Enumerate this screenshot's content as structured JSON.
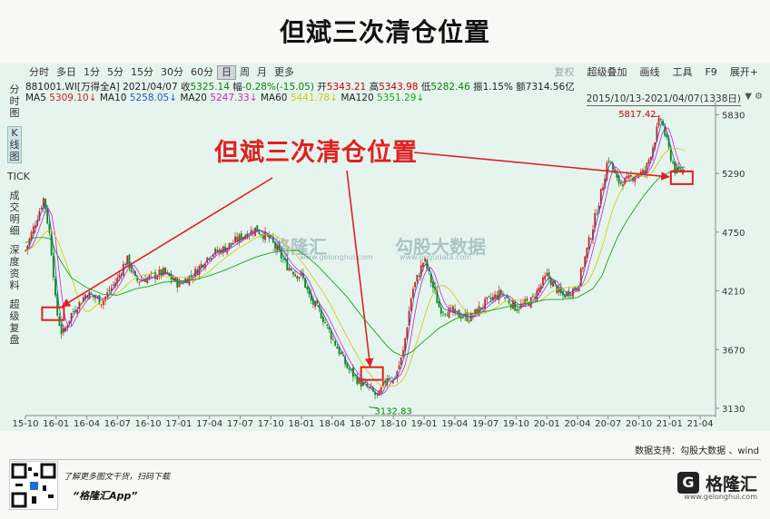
{
  "title": "但斌三次清仓位置",
  "toolbar": {
    "periods": [
      "分时",
      "多日",
      "1分",
      "5分",
      "15分",
      "30分",
      "60分",
      "日",
      "周",
      "月",
      "更多"
    ],
    "active": "日",
    "right": [
      "复权",
      "超级叠加",
      "画线",
      "工具",
      "F9",
      "展开+"
    ]
  },
  "sidebar": [
    "分时图",
    "K线图",
    "TICK",
    "成交明细",
    "深度资料",
    "超级复盘"
  ],
  "info": {
    "code": "881001.WI[万得全A]",
    "date": "2021/04/07",
    "close_label": "收",
    "close": "5325.14",
    "chg_label": "幅",
    "chg": "-0.28%(-15.05)",
    "open_label": "开",
    "open": "5343.21",
    "high_label": "高",
    "high": "5343.98",
    "low_label": "低",
    "low": "5282.46",
    "amp_label": "振",
    "amp": "1.15%",
    "amt_label": "额",
    "amt": "7314.56亿"
  },
  "ma": [
    {
      "name": "MA5",
      "value": "5309.10",
      "color": "#cc2222"
    },
    {
      "name": "MA10",
      "value": "5258.05",
      "color": "#2255cc"
    },
    {
      "name": "MA20",
      "value": "5247.33",
      "color": "#cc22cc"
    },
    {
      "name": "MA60",
      "value": "5441.78",
      "color": "#cccc00"
    },
    {
      "name": "MA120",
      "value": "5351.29",
      "color": "#11aa11"
    }
  ],
  "range_text": "2015/10/13-2021/04/07(1338日)",
  "annotation": "但斌三次清仓位置",
  "watermark": {
    "brand": "格隆汇",
    "brand2": "勾股大数据",
    "url": "www.gelonghui.com",
    "url2": "www.gogudata.com"
  },
  "footer": {
    "source": "数据支持：勾股大数据 、wind",
    "scan": "了解更多图文干货，扫码下载",
    "app": "“格隆汇App”",
    "brand": "格隆汇",
    "brand_sub": "www.gelonghui.com"
  },
  "chart_data": {
    "type": "line",
    "x_ticks": [
      "15-10",
      "16-01",
      "16-04",
      "16-07",
      "16-10",
      "17-01",
      "17-04",
      "17-07",
      "17-10",
      "18-01",
      "18-04",
      "18-07",
      "18-10",
      "19-01",
      "19-04",
      "19-07",
      "19-10",
      "20-01",
      "20-04",
      "20-07",
      "20-10",
      "21-01",
      "21-04"
    ],
    "y_ticks": [
      3130,
      3670,
      4210,
      4750,
      5290,
      5830
    ],
    "ylim": [
      3080,
      5900
    ],
    "x": [
      0,
      0.3,
      0.6,
      0.8,
      0.9,
      1.0,
      1.2,
      1.5,
      2,
      2.5,
      3,
      3.3,
      3.6,
      4,
      4.5,
      5,
      5.5,
      6,
      6.5,
      7,
      7.5,
      8,
      8.5,
      8.9,
      9,
      9.3,
      9.6,
      10,
      10.5,
      10.9,
      11.2,
      11.5,
      11.8,
      12,
      12.3,
      12.6,
      13,
      13.5,
      14,
      14.5,
      15,
      15.5,
      16,
      16.5,
      17,
      17.5,
      18,
      18.5,
      18.8,
      19,
      19.3,
      19.6,
      19.9,
      20.2,
      20.5,
      20.7,
      21,
      21.2,
      21.5
    ],
    "close": [
      4580,
      4820,
      5070,
      4700,
      4420,
      4040,
      3800,
      4000,
      4190,
      4110,
      4320,
      4510,
      4300,
      4330,
      4380,
      4270,
      4370,
      4540,
      4600,
      4700,
      4780,
      4680,
      4450,
      4350,
      4360,
      4120,
      4020,
      3780,
      3500,
      3370,
      3310,
      3230,
      3430,
      3380,
      3620,
      4200,
      4500,
      4050,
      4000,
      3960,
      4100,
      4190,
      4050,
      4120,
      4350,
      4160,
      4250,
      4800,
      5150,
      5440,
      5210,
      5220,
      5280,
      5300,
      5580,
      5817.42,
      5480,
      5300,
      5325.14
    ],
    "ma120": [
      4650,
      4700,
      4700,
      4690,
      4640,
      4560,
      4460,
      4330,
      4240,
      4180,
      4170,
      4200,
      4230,
      4250,
      4290,
      4300,
      4310,
      4350,
      4400,
      4460,
      4520,
      4560,
      4580,
      4580,
      4560,
      4500,
      4420,
      4300,
      4150,
      4000,
      3900,
      3800,
      3700,
      3650,
      3610,
      3650,
      3750,
      3870,
      3950,
      4000,
      4020,
      4050,
      4080,
      4100,
      4130,
      4130,
      4150,
      4230,
      4350,
      4500,
      4700,
      4850,
      4980,
      5100,
      5200,
      5260,
      5300,
      5330,
      5351.29
    ],
    "annotations": [
      {
        "label": "5817.42",
        "x": 20.7,
        "y": 5817.42
      },
      {
        "label": "3132.83",
        "x": 11.5,
        "y": 3132.83
      }
    ],
    "clear_positions": [
      {
        "x": 0.9,
        "y": 4000
      },
      {
        "x": 11.3,
        "y": 3450
      },
      {
        "x": 21.4,
        "y": 5250
      }
    ]
  }
}
